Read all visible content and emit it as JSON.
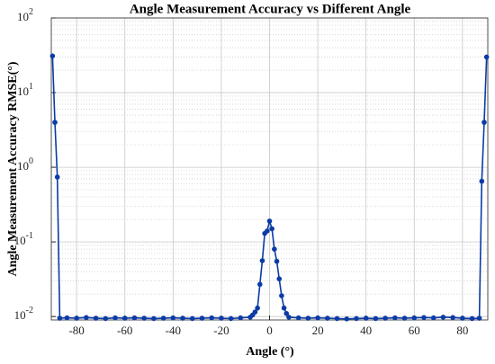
{
  "chart_data": {
    "type": "line",
    "title": "Angle Measurement Accuracy vs Different Angle",
    "xlabel": "Angle (°)",
    "ylabel": "Angle Measurement Accuracy RMSE(°)",
    "x": [
      -90,
      -89,
      -88,
      -87,
      -84,
      -80,
      -76,
      -72,
      -68,
      -64,
      -60,
      -56,
      -52,
      -48,
      -44,
      -40,
      -36,
      -32,
      -28,
      -24,
      -20,
      -16,
      -12,
      -8,
      -7,
      -6,
      -5,
      -4,
      -3,
      -2,
      -1,
      0,
      1,
      2,
      3,
      4,
      5,
      6,
      7,
      8,
      12,
      16,
      20,
      24,
      28,
      32,
      36,
      40,
      44,
      48,
      52,
      56,
      60,
      64,
      68,
      72,
      76,
      80,
      84,
      87,
      88,
      89,
      90
    ],
    "series": [
      {
        "name": "RMSE",
        "color": "#0b3ba7",
        "values": [
          31,
          4,
          0.74,
          0.0095,
          0.0096,
          0.0095,
          0.0097,
          0.0095,
          0.0094,
          0.0096,
          0.0095,
          0.0096,
          0.0095,
          0.0094,
          0.0095,
          0.0096,
          0.0095,
          0.0094,
          0.0095,
          0.0096,
          0.0095,
          0.0094,
          0.0096,
          0.0098,
          0.0105,
          0.0115,
          0.013,
          0.027,
          0.056,
          0.13,
          0.14,
          0.19,
          0.15,
          0.08,
          0.055,
          0.032,
          0.019,
          0.013,
          0.011,
          0.0098,
          0.0096,
          0.0095,
          0.0096,
          0.0095,
          0.0094,
          0.0093,
          0.0094,
          0.0095,
          0.0094,
          0.0095,
          0.0096,
          0.0095,
          0.0096,
          0.0097,
          0.0096,
          0.0098,
          0.0097,
          0.0095,
          0.0094,
          0.0095,
          0.65,
          4,
          30
        ]
      }
    ],
    "xlim": [
      -90.5,
      90.5
    ],
    "xticks": [
      -80,
      -60,
      -40,
      -20,
      0,
      20,
      40,
      60,
      80
    ],
    "ylim": [
      0.009,
      100
    ],
    "yticks": [
      {
        "value": 0.01,
        "label": "10",
        "exponent": "-2"
      },
      {
        "value": 0.1,
        "label": "10",
        "exponent": "-1"
      },
      {
        "value": 1,
        "label": "10",
        "exponent": "0"
      },
      {
        "value": 10,
        "label": "10",
        "exponent": "1"
      },
      {
        "value": 100,
        "label": "10",
        "exponent": "2"
      }
    ],
    "log_y": true,
    "grid": true,
    "minor_grid": true
  }
}
